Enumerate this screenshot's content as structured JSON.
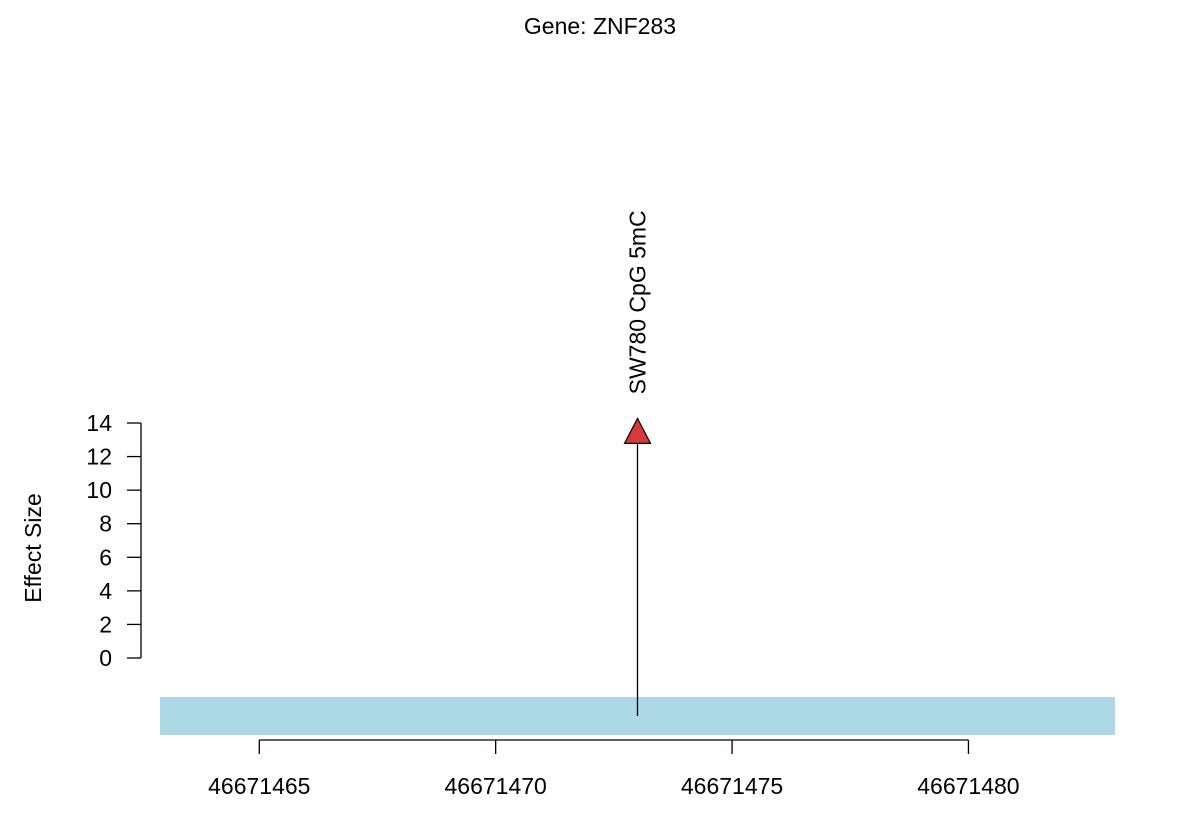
{
  "chart_data": {
    "type": "lollipop",
    "title": "Gene: ZNF283",
    "ylabel": "Effect Size",
    "xlabel": "",
    "ylim": [
      0,
      14
    ],
    "yticks": [
      0,
      2,
      4,
      6,
      8,
      10,
      12,
      14
    ],
    "xlim": [
      46671462.9,
      46671483.1
    ],
    "xticks": [
      46671465,
      46671470,
      46671475,
      46671480
    ],
    "xtick_labels": [
      "46671465",
      "46671470",
      "46671475",
      "46671480"
    ],
    "gene_region": {
      "start": 46671462.9,
      "end": 46671483.1,
      "color": "#ADD8E6"
    },
    "points": [
      {
        "x": 46671473,
        "y": 13.5,
        "label": "SW780 CpG 5mC",
        "marker": "triangle",
        "color": "#D83A3A"
      }
    ]
  }
}
